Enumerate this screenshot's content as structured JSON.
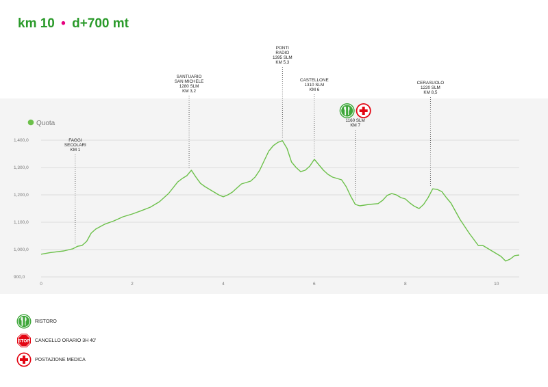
{
  "header": {
    "distance": "km 10",
    "separator": "•",
    "elevation_gain": "d+700 mt"
  },
  "colors": {
    "line": "#6cc04a",
    "title": "#2a9a2a",
    "accent_dot": "#e6007e",
    "band": "#f4f4f4",
    "grid": "#d6d6d6",
    "stop_red": "#e30613"
  },
  "chart_data": {
    "type": "line",
    "title": "",
    "xlabel": "",
    "ylabel": "",
    "legend": {
      "label": "Quota",
      "placement": "top-left"
    },
    "xlim": [
      0,
      10.5
    ],
    "ylim": [
      900,
      1400
    ],
    "grid": "horizontal",
    "x_ticks": [
      0,
      2,
      4,
      6,
      8,
      10
    ],
    "x_tick_labels": [
      "0",
      "2",
      "4",
      "6",
      "8",
      "10"
    ],
    "y_ticks": [
      900,
      1000,
      1100,
      1200,
      1300,
      1400
    ],
    "y_tick_labels": [
      "900,0",
      "1,000,0",
      "1,100,0",
      "1,200,0",
      "1,300,0",
      "1,400,0"
    ],
    "series": [
      {
        "name": "Quota",
        "x": [
          0,
          0.2,
          0.5,
          0.7,
          0.8,
          0.9,
          1.0,
          1.1,
          1.2,
          1.4,
          1.6,
          1.8,
          2.0,
          2.2,
          2.4,
          2.6,
          2.8,
          3.0,
          3.1,
          3.2,
          3.3,
          3.4,
          3.5,
          3.6,
          3.8,
          3.9,
          4.0,
          4.1,
          4.2,
          4.3,
          4.4,
          4.5,
          4.6,
          4.7,
          4.8,
          4.9,
          5.0,
          5.1,
          5.2,
          5.3,
          5.4,
          5.5,
          5.6,
          5.7,
          5.8,
          5.9,
          6.0,
          6.1,
          6.2,
          6.3,
          6.4,
          6.5,
          6.6,
          6.7,
          6.8,
          6.9,
          7.0,
          7.2,
          7.4,
          7.5,
          7.6,
          7.7,
          7.8,
          7.9,
          8.0,
          8.1,
          8.2,
          8.3,
          8.4,
          8.5,
          8.6,
          8.7,
          8.8,
          8.9,
          9.0,
          9.2,
          9.4,
          9.6,
          9.7,
          9.8,
          9.9,
          10.0,
          10.1,
          10.2,
          10.3,
          10.4,
          10.5
        ],
        "values": [
          983,
          989,
          995,
          1003,
          1012,
          1015,
          1030,
          1060,
          1075,
          1093,
          1105,
          1120,
          1130,
          1142,
          1155,
          1175,
          1205,
          1247,
          1260,
          1270,
          1290,
          1265,
          1242,
          1230,
          1210,
          1200,
          1193,
          1200,
          1210,
          1225,
          1240,
          1245,
          1250,
          1265,
          1290,
          1325,
          1360,
          1380,
          1392,
          1398,
          1370,
          1320,
          1300,
          1285,
          1290,
          1305,
          1330,
          1310,
          1290,
          1275,
          1265,
          1260,
          1255,
          1230,
          1195,
          1165,
          1160,
          1165,
          1168,
          1180,
          1198,
          1205,
          1200,
          1190,
          1185,
          1170,
          1158,
          1150,
          1165,
          1190,
          1222,
          1220,
          1212,
          1190,
          1170,
          1110,
          1060,
          1015,
          1015,
          1005,
          995,
          985,
          975,
          958,
          965,
          978,
          980
        ]
      }
    ],
    "annotations": [
      {
        "lines": [
          "FAGGI",
          "SECOLARI",
          "KM 1"
        ],
        "x": 0.75,
        "y": 1008,
        "label_elev": 1360,
        "icons": []
      },
      {
        "lines": [
          "SANTUARIO",
          "SAN MICHELE",
          "1280 SLM",
          "KM 3,2"
        ],
        "x": 3.25,
        "y": 1283,
        "label_elev": 1575,
        "icons": []
      },
      {
        "lines": [
          "PONTI",
          "RADIO",
          "1395 SLM",
          "KM 5,3"
        ],
        "x": 5.3,
        "y": 1398,
        "label_elev": 1680,
        "icons": []
      },
      {
        "lines": [
          "CASTELLONE",
          "1310 SLM",
          "KM 6"
        ],
        "x": 6.0,
        "y": 1325,
        "label_elev": 1580,
        "icons": []
      },
      {
        "lines": [
          "1160 SLM",
          "KM 7"
        ],
        "x": 6.9,
        "y": 1168,
        "label_elev": 1450,
        "icons": [
          "ristoro",
          "medical"
        ]
      },
      {
        "lines": [
          "CERASUOLO",
          "1220 SLM",
          "KM 8,5"
        ],
        "x": 8.55,
        "y": 1222,
        "label_elev": 1570,
        "icons": []
      }
    ]
  },
  "legend_items": [
    {
      "icon": "fork-knife-icon",
      "label": "RISTORO"
    },
    {
      "icon": "stop-sign-icon",
      "label": "CANCELLO ORARIO 3h 40'",
      "sign_text": "STOP"
    },
    {
      "icon": "medical-cross-icon",
      "label": "POSTAZIONE MEDICA"
    }
  ]
}
